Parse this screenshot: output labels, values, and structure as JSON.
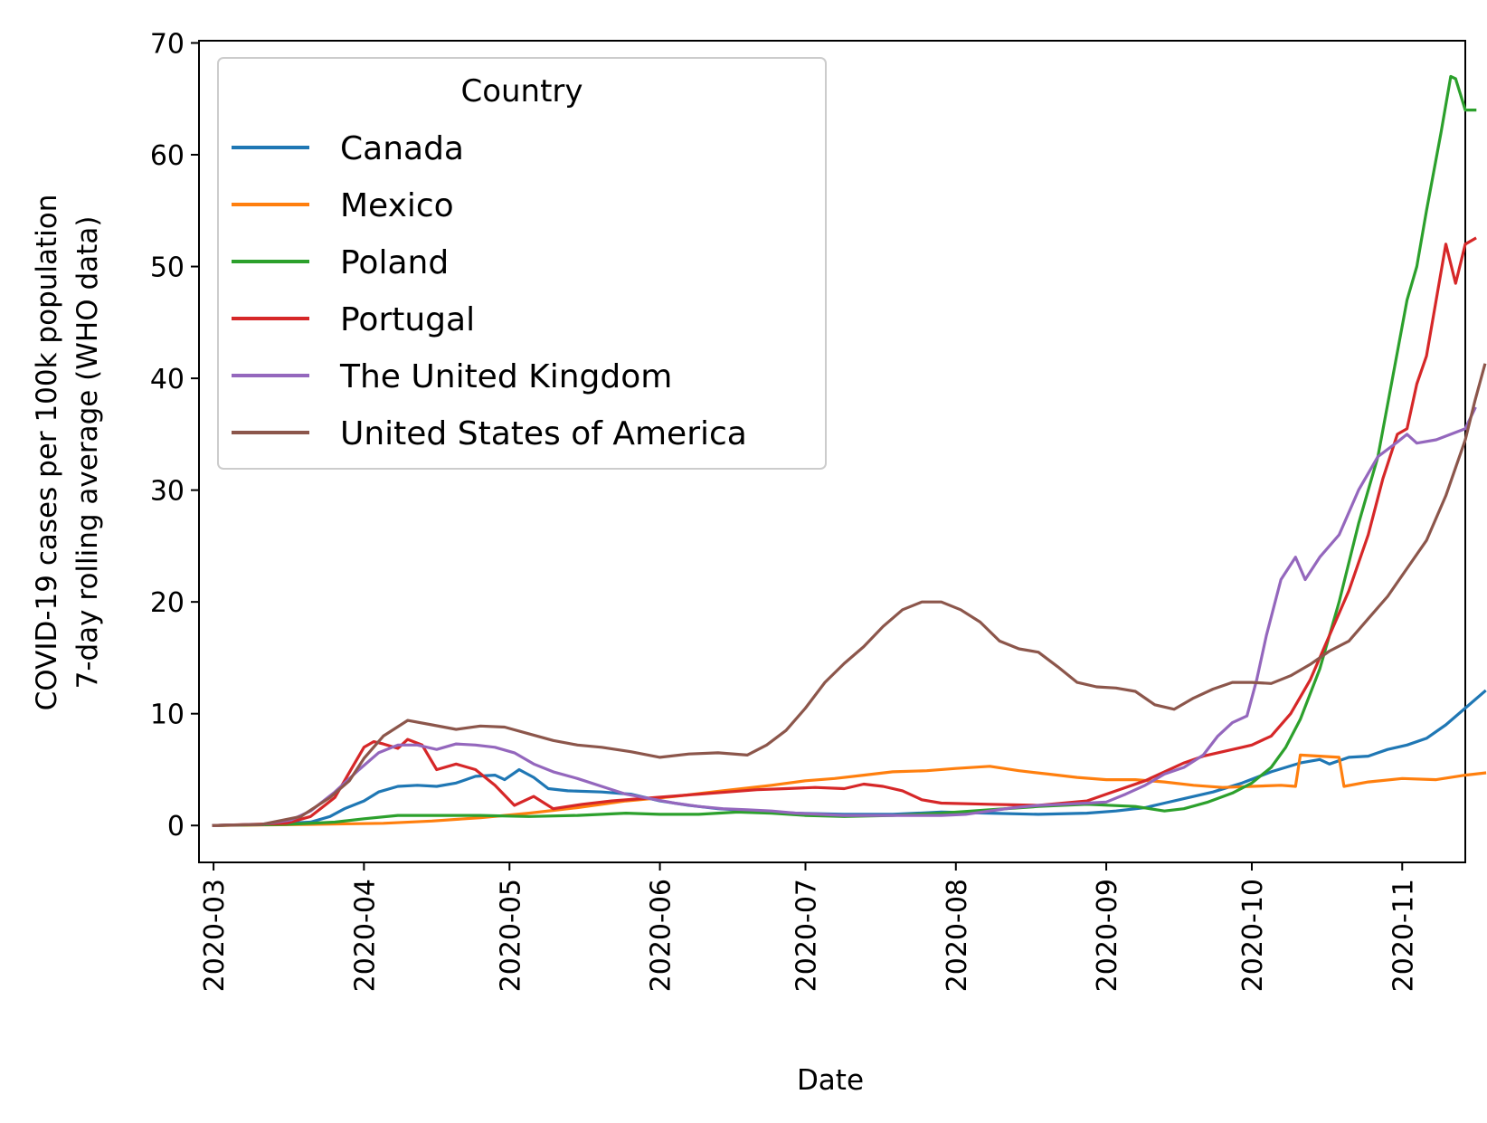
{
  "chart_data": {
    "type": "line",
    "title": "",
    "xlabel": "Date",
    "ylabel_lines": [
      "COVID-19 cases per 100k population",
      "7-day rolling average (WHO data)"
    ],
    "x_domain_days": [
      -3,
      258
    ],
    "ylim": [
      -3.3,
      70.2
    ],
    "yticks": [
      0,
      10,
      20,
      30,
      40,
      50,
      60,
      70
    ],
    "xticks": [
      {
        "label": "2020-03",
        "day": 0
      },
      {
        "label": "2020-04",
        "day": 31
      },
      {
        "label": "2020-05",
        "day": 61
      },
      {
        "label": "2020-06",
        "day": 92
      },
      {
        "label": "2020-07",
        "day": 122
      },
      {
        "label": "2020-08",
        "day": 153
      },
      {
        "label": "2020-09",
        "day": 184
      },
      {
        "label": "2020-10",
        "day": 214
      },
      {
        "label": "2020-11",
        "day": 245
      }
    ],
    "x_note": "x values are days since 2020-03-01",
    "legend": {
      "title": "Country",
      "position": "upper-left"
    },
    "series": [
      {
        "name": "Canada",
        "color": "#1f77b4",
        "points": [
          [
            0,
            0
          ],
          [
            10,
            0.1
          ],
          [
            20,
            0.3
          ],
          [
            24,
            0.8
          ],
          [
            27,
            1.5
          ],
          [
            31,
            2.2
          ],
          [
            34,
            3
          ],
          [
            38,
            3.5
          ],
          [
            42,
            3.6
          ],
          [
            46,
            3.5
          ],
          [
            50,
            3.8
          ],
          [
            54,
            4.4
          ],
          [
            58,
            4.5
          ],
          [
            60,
            4.1
          ],
          [
            63,
            5
          ],
          [
            66,
            4.3
          ],
          [
            69,
            3.3
          ],
          [
            73,
            3.1
          ],
          [
            80,
            3
          ],
          [
            86,
            2.8
          ],
          [
            92,
            2.2
          ],
          [
            98,
            1.8
          ],
          [
            104,
            1.5
          ],
          [
            112,
            1.3
          ],
          [
            120,
            1.1
          ],
          [
            130,
            1
          ],
          [
            140,
            1
          ],
          [
            150,
            1.2
          ],
          [
            160,
            1.1
          ],
          [
            170,
            1
          ],
          [
            180,
            1.1
          ],
          [
            186,
            1.3
          ],
          [
            192,
            1.6
          ],
          [
            196,
            2
          ],
          [
            200,
            2.4
          ],
          [
            206,
            3
          ],
          [
            212,
            3.8
          ],
          [
            218,
            4.8
          ],
          [
            224,
            5.6
          ],
          [
            228,
            5.9
          ],
          [
            230,
            5.5
          ],
          [
            234,
            6.1
          ],
          [
            238,
            6.2
          ],
          [
            242,
            6.8
          ],
          [
            246,
            7.2
          ],
          [
            250,
            7.8
          ],
          [
            254,
            9
          ],
          [
            258,
            10.5
          ],
          [
            262,
            12
          ]
        ]
      },
      {
        "name": "Mexico",
        "color": "#ff7f0e",
        "points": [
          [
            0,
            0
          ],
          [
            20,
            0.1
          ],
          [
            35,
            0.2
          ],
          [
            45,
            0.4
          ],
          [
            55,
            0.7
          ],
          [
            65,
            1.1
          ],
          [
            75,
            1.6
          ],
          [
            85,
            2.2
          ],
          [
            95,
            2.6
          ],
          [
            105,
            3.1
          ],
          [
            115,
            3.6
          ],
          [
            122,
            4
          ],
          [
            128,
            4.2
          ],
          [
            134,
            4.5
          ],
          [
            140,
            4.8
          ],
          [
            147,
            4.9
          ],
          [
            153,
            5.1
          ],
          [
            160,
            5.3
          ],
          [
            166,
            4.9
          ],
          [
            172,
            4.6
          ],
          [
            178,
            4.3
          ],
          [
            184,
            4.1
          ],
          [
            190,
            4.1
          ],
          [
            196,
            3.9
          ],
          [
            202,
            3.6
          ],
          [
            208,
            3.4
          ],
          [
            214,
            3.5
          ],
          [
            220,
            3.6
          ],
          [
            223,
            3.5
          ],
          [
            224,
            6.3
          ],
          [
            228,
            6.2
          ],
          [
            232,
            6.1
          ],
          [
            233,
            3.5
          ],
          [
            238,
            3.9
          ],
          [
            245,
            4.2
          ],
          [
            252,
            4.1
          ],
          [
            258,
            4.5
          ],
          [
            262,
            4.7
          ]
        ]
      },
      {
        "name": "Poland",
        "color": "#2ca02c",
        "points": [
          [
            0,
            0
          ],
          [
            15,
            0.1
          ],
          [
            25,
            0.3
          ],
          [
            31,
            0.6
          ],
          [
            38,
            0.9
          ],
          [
            45,
            0.9
          ],
          [
            55,
            0.9
          ],
          [
            65,
            0.8
          ],
          [
            75,
            0.9
          ],
          [
            85,
            1.1
          ],
          [
            92,
            1
          ],
          [
            100,
            1
          ],
          [
            108,
            1.2
          ],
          [
            115,
            1.1
          ],
          [
            122,
            0.9
          ],
          [
            130,
            0.8
          ],
          [
            140,
            0.9
          ],
          [
            150,
            1.1
          ],
          [
            160,
            1.4
          ],
          [
            170,
            1.7
          ],
          [
            180,
            1.9
          ],
          [
            190,
            1.7
          ],
          [
            196,
            1.3
          ],
          [
            200,
            1.5
          ],
          [
            205,
            2.1
          ],
          [
            210,
            2.9
          ],
          [
            214,
            3.8
          ],
          [
            218,
            5.2
          ],
          [
            221,
            7
          ],
          [
            224,
            9.5
          ],
          [
            228,
            14
          ],
          [
            232,
            20
          ],
          [
            236,
            27
          ],
          [
            240,
            33
          ],
          [
            243,
            40
          ],
          [
            246,
            47
          ],
          [
            248,
            50
          ],
          [
            250,
            55
          ],
          [
            253,
            62
          ],
          [
            255,
            67
          ],
          [
            256,
            66.8
          ],
          [
            258,
            64
          ],
          [
            260,
            64
          ]
        ]
      },
      {
        "name": "Portugal",
        "color": "#d62728",
        "points": [
          [
            0,
            0
          ],
          [
            15,
            0.2
          ],
          [
            20,
            0.8
          ],
          [
            25,
            2.5
          ],
          [
            29,
            5.5
          ],
          [
            31,
            7
          ],
          [
            33,
            7.5
          ],
          [
            35,
            7.3
          ],
          [
            38,
            6.9
          ],
          [
            40,
            7.7
          ],
          [
            43,
            7.2
          ],
          [
            46,
            5
          ],
          [
            50,
            5.5
          ],
          [
            54,
            5
          ],
          [
            58,
            3.6
          ],
          [
            62,
            1.8
          ],
          [
            66,
            2.6
          ],
          [
            70,
            1.5
          ],
          [
            76,
            1.9
          ],
          [
            82,
            2.2
          ],
          [
            88,
            2.4
          ],
          [
            94,
            2.6
          ],
          [
            100,
            2.8
          ],
          [
            106,
            3
          ],
          [
            112,
            3.2
          ],
          [
            118,
            3.3
          ],
          [
            124,
            3.4
          ],
          [
            130,
            3.3
          ],
          [
            134,
            3.7
          ],
          [
            138,
            3.5
          ],
          [
            142,
            3.1
          ],
          [
            146,
            2.3
          ],
          [
            150,
            2
          ],
          [
            160,
            1.9
          ],
          [
            170,
            1.8
          ],
          [
            180,
            2.2
          ],
          [
            184,
            2.8
          ],
          [
            188,
            3.4
          ],
          [
            192,
            4
          ],
          [
            196,
            4.8
          ],
          [
            200,
            5.6
          ],
          [
            204,
            6.2
          ],
          [
            208,
            6.6
          ],
          [
            212,
            7
          ],
          [
            214,
            7.2
          ],
          [
            218,
            8
          ],
          [
            222,
            10
          ],
          [
            226,
            13
          ],
          [
            230,
            17
          ],
          [
            234,
            21
          ],
          [
            238,
            26
          ],
          [
            241,
            31
          ],
          [
            244,
            35
          ],
          [
            246,
            35.5
          ],
          [
            248,
            39.5
          ],
          [
            250,
            42
          ],
          [
            252,
            47
          ],
          [
            254,
            52
          ],
          [
            256,
            48.5
          ],
          [
            258,
            52
          ],
          [
            260,
            52.5
          ]
        ]
      },
      {
        "name": "The United Kingdom",
        "color": "#9467bd",
        "points": [
          [
            0,
            0
          ],
          [
            10,
            0.1
          ],
          [
            16,
            0.5
          ],
          [
            20,
            1.3
          ],
          [
            25,
            3
          ],
          [
            30,
            5
          ],
          [
            34,
            6.5
          ],
          [
            38,
            7.2
          ],
          [
            42,
            7.2
          ],
          [
            46,
            6.8
          ],
          [
            50,
            7.3
          ],
          [
            54,
            7.2
          ],
          [
            58,
            7
          ],
          [
            62,
            6.5
          ],
          [
            66,
            5.5
          ],
          [
            70,
            4.8
          ],
          [
            75,
            4.2
          ],
          [
            80,
            3.5
          ],
          [
            85,
            2.8
          ],
          [
            90,
            2.4
          ],
          [
            95,
            2
          ],
          [
            100,
            1.7
          ],
          [
            105,
            1.5
          ],
          [
            110,
            1.4
          ],
          [
            115,
            1.3
          ],
          [
            120,
            1.1
          ],
          [
            125,
            1
          ],
          [
            130,
            0.9
          ],
          [
            140,
            0.9
          ],
          [
            150,
            0.9
          ],
          [
            155,
            1
          ],
          [
            160,
            1.3
          ],
          [
            165,
            1.6
          ],
          [
            170,
            1.8
          ],
          [
            175,
            1.9
          ],
          [
            180,
            2
          ],
          [
            184,
            2.1
          ],
          [
            188,
            2.8
          ],
          [
            192,
            3.6
          ],
          [
            196,
            4.6
          ],
          [
            200,
            5.2
          ],
          [
            204,
            6.3
          ],
          [
            207,
            8
          ],
          [
            210,
            9.2
          ],
          [
            213,
            9.8
          ],
          [
            215,
            13
          ],
          [
            217,
            17
          ],
          [
            220,
            22
          ],
          [
            223,
            24
          ],
          [
            225,
            22
          ],
          [
            228,
            24
          ],
          [
            232,
            26
          ],
          [
            236,
            30
          ],
          [
            240,
            33
          ],
          [
            244,
            34.3
          ],
          [
            246,
            35
          ],
          [
            248,
            34.2
          ],
          [
            252,
            34.5
          ],
          [
            255,
            35
          ],
          [
            258,
            35.5
          ],
          [
            260,
            37.3
          ]
        ]
      },
      {
        "name": "United States of America",
        "color": "#8c564b",
        "points": [
          [
            0,
            0
          ],
          [
            10,
            0.1
          ],
          [
            18,
            0.8
          ],
          [
            24,
            2.5
          ],
          [
            28,
            4
          ],
          [
            31,
            6
          ],
          [
            35,
            8
          ],
          [
            40,
            9.4
          ],
          [
            45,
            9
          ],
          [
            50,
            8.6
          ],
          [
            55,
            8.9
          ],
          [
            60,
            8.8
          ],
          [
            65,
            8.2
          ],
          [
            70,
            7.6
          ],
          [
            75,
            7.2
          ],
          [
            80,
            7
          ],
          [
            86,
            6.6
          ],
          [
            92,
            6.1
          ],
          [
            98,
            6.4
          ],
          [
            104,
            6.5
          ],
          [
            110,
            6.3
          ],
          [
            114,
            7.2
          ],
          [
            118,
            8.5
          ],
          [
            122,
            10.5
          ],
          [
            126,
            12.8
          ],
          [
            130,
            14.5
          ],
          [
            134,
            16
          ],
          [
            138,
            17.8
          ],
          [
            142,
            19.3
          ],
          [
            146,
            20
          ],
          [
            150,
            20
          ],
          [
            154,
            19.3
          ],
          [
            158,
            18.2
          ],
          [
            162,
            16.5
          ],
          [
            166,
            15.8
          ],
          [
            170,
            15.5
          ],
          [
            174,
            14.2
          ],
          [
            178,
            12.8
          ],
          [
            182,
            12.4
          ],
          [
            186,
            12.3
          ],
          [
            190,
            12
          ],
          [
            194,
            10.8
          ],
          [
            198,
            10.4
          ],
          [
            202,
            11.4
          ],
          [
            206,
            12.2
          ],
          [
            210,
            12.8
          ],
          [
            214,
            12.8
          ],
          [
            218,
            12.7
          ],
          [
            222,
            13.4
          ],
          [
            226,
            14.4
          ],
          [
            230,
            15.6
          ],
          [
            234,
            16.5
          ],
          [
            238,
            18.5
          ],
          [
            242,
            20.5
          ],
          [
            246,
            23
          ],
          [
            250,
            25.5
          ],
          [
            254,
            29.5
          ],
          [
            258,
            34.5
          ],
          [
            260,
            38
          ],
          [
            262,
            41.2
          ]
        ]
      }
    ]
  }
}
